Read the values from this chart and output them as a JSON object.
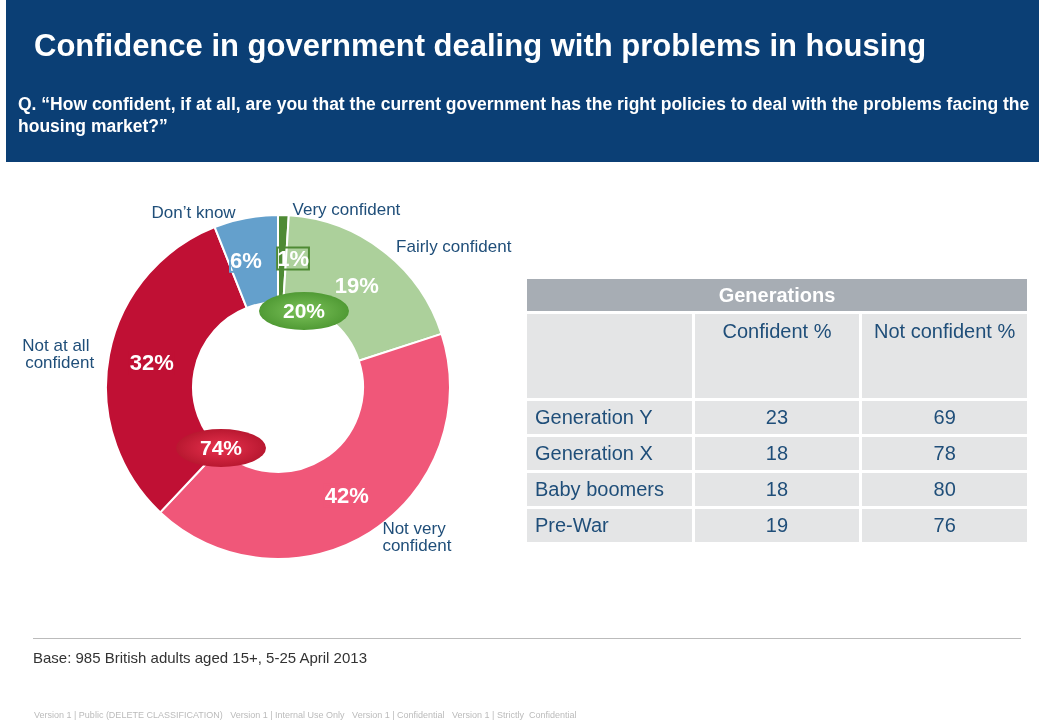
{
  "chart_data": [
    {
      "type": "donut",
      "title": "Confidence in government dealing with problems in housing",
      "subtitle": "Q. “How confident, if at all, are you that the current government has the right policies to deal with the problems facing the housing market?”",
      "categories": [
        "Very confident",
        "Fairly confident",
        "Not very confident",
        "Not at all confident",
        "Don’t know"
      ],
      "values": [
        1,
        19,
        42,
        32,
        6
      ],
      "value_labels": [
        "1%",
        "19%",
        "42%",
        "32%",
        "6%"
      ],
      "colors": [
        "#4e8a34",
        "#acd09b",
        "#f05779",
        "#c01034",
        "#64a0cc"
      ],
      "annotations": [
        "20%",
        "74%",
        "Base: 985 British adults aged 15+, 5-25 April 2013",
        "Version 1 | Public (DELETE CLASSIFICATION)   Version 1 | Internal Use Only   Version 1 | Confidential   Version 1 | Strictly  Confidential"
      ]
    },
    {
      "type": "other",
      "title": "Generations",
      "categories": [
        "Generation Y",
        "Generation X",
        "Baby boomers",
        "Pre-War"
      ],
      "series": [
        {
          "name": "Confident %",
          "values": [
            23,
            18,
            18,
            19
          ]
        },
        {
          "name": "Not confident %",
          "values": [
            69,
            78,
            80,
            76
          ]
        }
      ],
      "data_labels": true
    }
  ]
}
